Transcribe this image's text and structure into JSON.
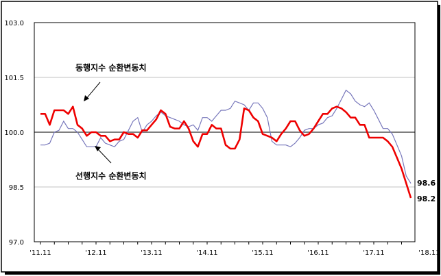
{
  "chart_data": {
    "type": "line",
    "title": "",
    "xlabel": "",
    "ylabel": "",
    "ylim": [
      97.0,
      103.0
    ],
    "yticks": [
      "103.0",
      "101.5",
      "100.0",
      "98.5",
      "97.0"
    ],
    "ytick_values": [
      103.0,
      101.5,
      100.0,
      98.5,
      97.0
    ],
    "xticks": [
      "'11.11",
      "'12.11",
      "'13.11",
      "'14.11",
      "'15.11",
      "'16.11",
      "'17.11",
      "'18.11"
    ],
    "xtick_index": [
      0,
      12,
      24,
      36,
      48,
      60,
      72,
      84
    ],
    "grid": true,
    "reference_line": 100.0,
    "colors": {
      "leading": "#7777bb",
      "coincident": "#ee0000",
      "reference": "#555555",
      "grid": "#c0c0c0"
    },
    "annotations": {
      "coincident_label": "동행지수 순환변동치",
      "leading_label": "선행지수 순환변동치",
      "leading_end_label": "98.6",
      "coincident_end_label": "98.2"
    },
    "series": [
      {
        "key": "leading",
        "values": [
          99.65,
          99.65,
          99.7,
          100.0,
          100.05,
          100.3,
          100.1,
          100.1,
          100.0,
          99.8,
          99.6,
          99.6,
          99.6,
          99.85,
          99.7,
          99.65,
          99.6,
          99.75,
          99.8,
          100.05,
          100.3,
          100.4,
          100.0,
          100.2,
          100.3,
          100.45,
          100.55,
          100.45,
          100.4,
          100.35,
          100.3,
          100.2,
          100.15,
          100.2,
          100.05,
          100.4,
          100.4,
          100.3,
          100.45,
          100.6,
          100.6,
          100.65,
          100.85,
          100.8,
          100.75,
          100.6,
          100.8,
          100.8,
          100.65,
          100.4,
          99.75,
          99.65,
          99.65,
          99.65,
          99.6,
          99.7,
          99.85,
          100.05,
          100.1,
          100.1,
          100.2,
          100.25,
          100.4,
          100.45,
          100.65,
          100.9,
          101.15,
          101.05,
          100.85,
          100.75,
          100.7,
          100.8,
          100.6,
          100.35,
          100.1,
          100.1,
          99.95,
          99.65,
          99.35,
          98.8,
          98.6
        ]
      },
      {
        "key": "coincident",
        "values": [
          100.5,
          100.5,
          100.2,
          100.6,
          100.6,
          100.6,
          100.5,
          100.7,
          100.2,
          100.1,
          99.9,
          100.0,
          100.0,
          99.9,
          99.9,
          99.75,
          99.8,
          99.8,
          100.0,
          99.95,
          99.95,
          99.85,
          100.05,
          100.05,
          100.2,
          100.35,
          100.6,
          100.5,
          100.15,
          100.1,
          100.1,
          100.3,
          100.1,
          99.75,
          99.6,
          99.95,
          99.95,
          100.2,
          100.1,
          100.1,
          99.65,
          99.55,
          99.55,
          99.8,
          100.65,
          100.6,
          100.4,
          100.3,
          99.95,
          99.9,
          99.85,
          99.75,
          99.95,
          100.1,
          100.3,
          100.3,
          100.05,
          99.9,
          99.95,
          100.1,
          100.3,
          100.5,
          100.5,
          100.65,
          100.7,
          100.65,
          100.55,
          100.4,
          100.4,
          100.2,
          100.2,
          99.85,
          99.85,
          99.85,
          99.85,
          99.75,
          99.6,
          99.3,
          99.0,
          98.6,
          98.2
        ]
      }
    ]
  }
}
